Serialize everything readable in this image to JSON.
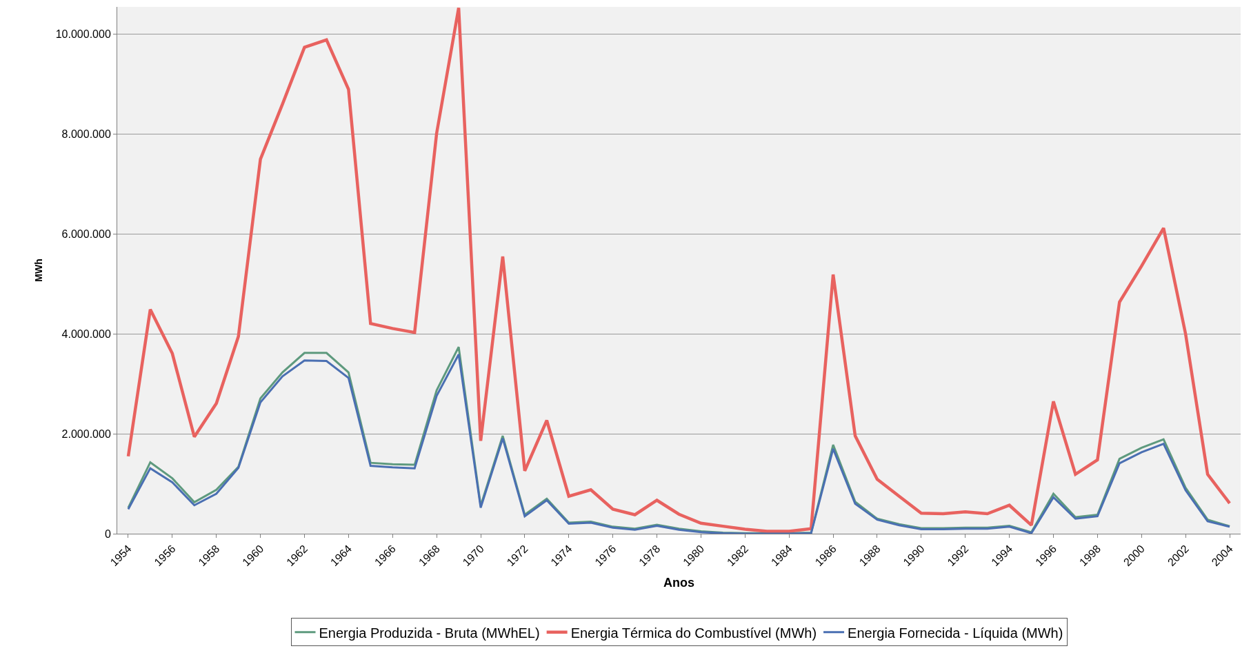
{
  "chart_data": {
    "type": "line",
    "xlabel": "Anos",
    "ylabel": "MWh",
    "categories": [
      "1954",
      null,
      "1956",
      null,
      "1958",
      null,
      "1960",
      null,
      "1962",
      null,
      "1964",
      null,
      "1966",
      null,
      "1968",
      null,
      "1970",
      null,
      "1972",
      null,
      "1974",
      null,
      "1976",
      null,
      "1978",
      null,
      "1980",
      null,
      "1982",
      null,
      "1984",
      null,
      "1986",
      null,
      "1988",
      null,
      "1990",
      null,
      "1992",
      null,
      "1994",
      null,
      "1996",
      null,
      "1998",
      null,
      "2000",
      null,
      "2002",
      null,
      "2004"
    ],
    "series": [
      {
        "name": "Energia Produzida - Bruta (MWhEL)",
        "color": "#5e9a7e",
        "values": [
          520000,
          1430000,
          1110000,
          630000,
          880000,
          1340000,
          2710000,
          3230000,
          3620000,
          3620000,
          3230000,
          1420000,
          1390000,
          1380000,
          2870000,
          3740000,
          560000,
          1960000,
          380000,
          700000,
          220000,
          240000,
          140000,
          100000,
          180000,
          100000,
          50000,
          20000,
          10000,
          10000,
          10000,
          20000,
          1780000,
          640000,
          300000,
          190000,
          110000,
          110000,
          120000,
          120000,
          160000,
          30000,
          800000,
          330000,
          380000,
          1500000,
          1720000,
          1890000,
          920000,
          280000,
          150000
        ]
      },
      {
        "name": "Energia Térmica do Combustível (MWh)",
        "color": "#e8625f",
        "values": [
          1550000,
          4490000,
          3610000,
          1940000,
          2610000,
          3950000,
          7500000,
          8600000,
          9740000,
          9890000,
          8900000,
          4210000,
          4110000,
          4030000,
          8020000,
          10530000,
          1860000,
          5550000,
          1260000,
          2270000,
          750000,
          880000,
          490000,
          380000,
          670000,
          390000,
          210000,
          150000,
          90000,
          50000,
          50000,
          100000,
          5190000,
          1960000,
          1090000,
          750000,
          410000,
          400000,
          440000,
          400000,
          570000,
          170000,
          2650000,
          1190000,
          1480000,
          4640000,
          5360000,
          6120000,
          4000000,
          1190000,
          610000
        ]
      },
      {
        "name": "Energia Fornecida - Líquida (MWh)",
        "color": "#4a6fb2",
        "values": [
          490000,
          1310000,
          1030000,
          570000,
          800000,
          1320000,
          2630000,
          3150000,
          3470000,
          3460000,
          3120000,
          1360000,
          1330000,
          1310000,
          2760000,
          3590000,
          520000,
          1910000,
          350000,
          670000,
          200000,
          220000,
          120000,
          80000,
          160000,
          80000,
          30000,
          10000,
          0,
          0,
          0,
          10000,
          1700000,
          600000,
          280000,
          170000,
          90000,
          90000,
          100000,
          100000,
          140000,
          10000,
          730000,
          300000,
          350000,
          1410000,
          1630000,
          1800000,
          870000,
          250000,
          140000
        ]
      }
    ],
    "ylim": [
      0,
      10550000
    ],
    "yticks": [
      {
        "value": 0,
        "label": "0"
      },
      {
        "value": 2000000,
        "label": "2.000.000"
      },
      {
        "value": 4000000,
        "label": "4.000.000"
      },
      {
        "value": 6000000,
        "label": "6.000.000"
      },
      {
        "value": 8000000,
        "label": "8.000.000"
      },
      {
        "value": 10000000,
        "label": "10.000.000"
      }
    ],
    "grid": "y",
    "legend": "bottom",
    "marker": "none",
    "line_style": "solid"
  }
}
